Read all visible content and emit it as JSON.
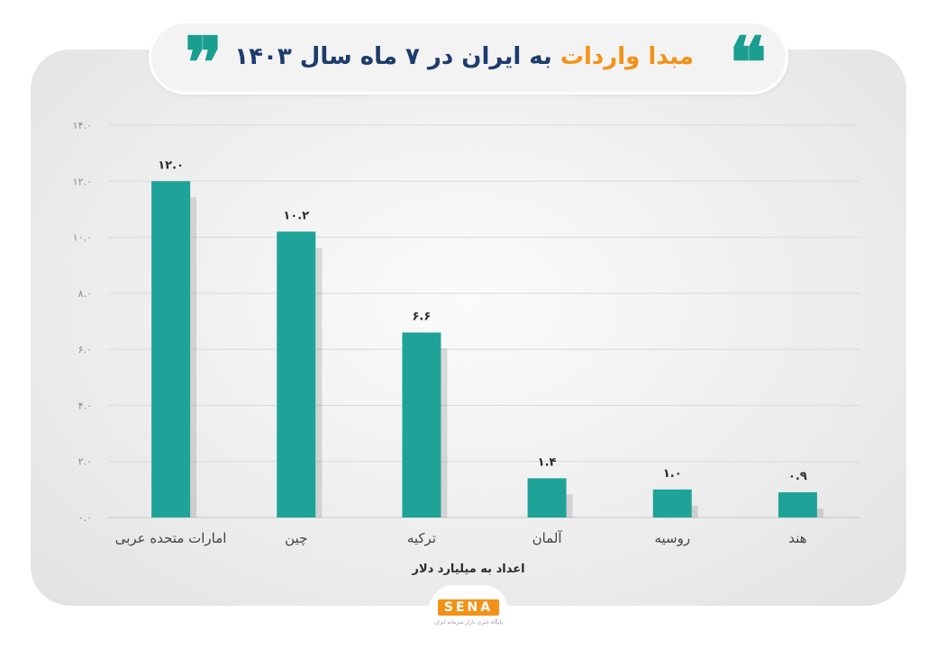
{
  "header": {
    "title_accent": "مبدا واردات",
    "title_rest": " به ایران در ۷ ماه سال ۱۴۰۳",
    "open_quote": "❞",
    "close_quote": "❝"
  },
  "colors": {
    "bar": "#1fa398",
    "accent": "#f29219",
    "title": "#1d3b6c",
    "quote": "#1a9e90"
  },
  "chart_data": {
    "type": "bar",
    "categories": [
      "امارات متحده عربی",
      "چین",
      "ترکیه",
      "آلمان",
      "روسیه",
      "هند"
    ],
    "values": [
      12.0,
      10.2,
      6.6,
      1.4,
      1.0,
      0.9
    ],
    "value_labels": [
      "۱۲.۰",
      "۱۰.۲",
      "۶.۶",
      "۱.۴",
      "۱.۰",
      "۰.۹"
    ],
    "y_ticks": [
      0,
      2,
      4,
      6,
      8,
      10,
      12,
      14
    ],
    "y_tick_labels": [
      "۰.۰",
      "۲.۰",
      "۴.۰",
      "۶.۰",
      "۸.۰",
      "۱۰.۰",
      "۱۲.۰",
      "۱۴.۰"
    ],
    "ylim": [
      0,
      14
    ],
    "xlabel": "اعداد به میلیارد دلار",
    "ylabel": "",
    "grid": true
  },
  "logo": {
    "text": "SENA",
    "subtitle": "پایگاه خبری بازار سرمایه ایران"
  }
}
